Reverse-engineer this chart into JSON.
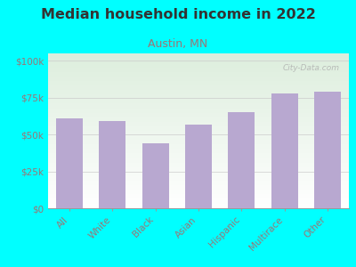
{
  "title": "Median household income in 2022",
  "subtitle": "Austin, MN",
  "categories": [
    "All",
    "White",
    "Black",
    "Asian",
    "Hispanic",
    "Multirace",
    "Other"
  ],
  "values": [
    61000,
    59000,
    44000,
    57000,
    65000,
    78000,
    79000
  ],
  "bar_color": "#b8a8d0",
  "background_outer": "#00ffff",
  "background_inner_top": "#ddeedd",
  "background_inner_bottom": "#ffffff",
  "title_color": "#333333",
  "subtitle_color": "#997777",
  "tick_label_color": "#997777",
  "ytick_labels": [
    "$0",
    "$25k",
    "$50k",
    "$75k",
    "$100k"
  ],
  "ytick_values": [
    0,
    25000,
    50000,
    75000,
    100000
  ],
  "ylim": [
    0,
    105000
  ],
  "watermark": "City-Data.com",
  "title_fontsize": 11.5,
  "subtitle_fontsize": 9,
  "tick_fontsize": 7.5
}
